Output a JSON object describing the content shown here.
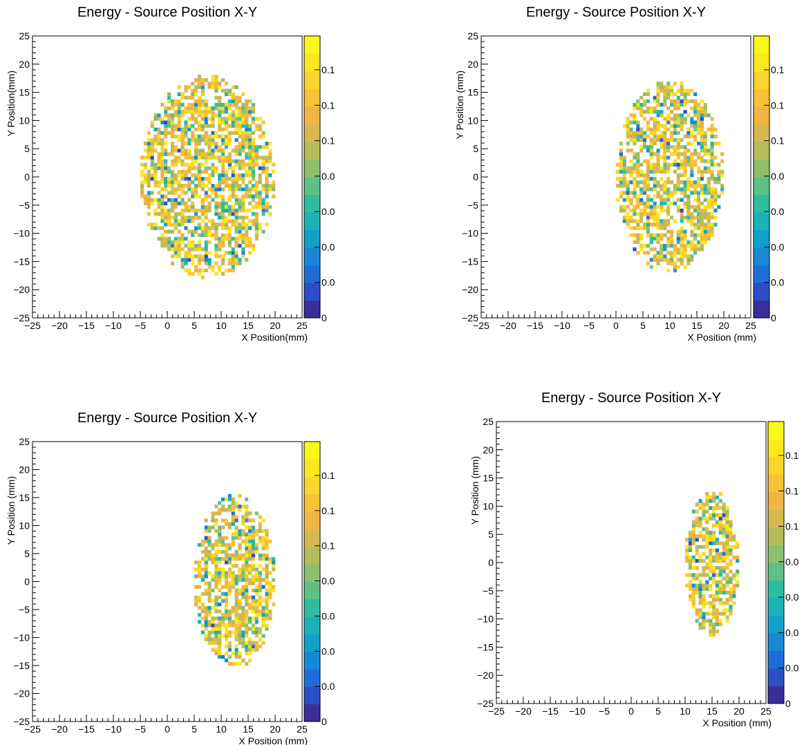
{
  "chart_data": [
    {
      "type": "heatmap",
      "title": "Energy - Source Position X-Y",
      "xlabel": "X Position(mm)",
      "ylabel": "Y Position(mm)",
      "xlim": [
        -25,
        25
      ],
      "ylim": [
        -25,
        25
      ],
      "xticks": [
        "−25",
        "−20",
        "−15",
        "−10",
        "−5",
        "0",
        "5",
        "10",
        "15",
        "20",
        "25"
      ],
      "yticks": [
        "25",
        "20",
        "15",
        "10",
        "5",
        "0",
        "−5",
        "−10",
        "−15",
        "−20",
        "−25"
      ],
      "colorbar_ticks": [
        "0.1",
        "0.1",
        "0.1",
        "0.0",
        "0.0",
        "0.0",
        "0.0",
        "0"
      ],
      "region": {
        "cx": 7.5,
        "cy": 0,
        "rx": 12.5,
        "ry": 18
      },
      "colorscale": [
        "#3a2d9b",
        "#2a4fc7",
        "#1f6ed8",
        "#1789d6",
        "#11a0cc",
        "#1bb2b8",
        "#2fbd9f",
        "#5fc086",
        "#8ec06c",
        "#b5bd5b",
        "#d6b851",
        "#f0b544",
        "#f7c237",
        "#f8d62a",
        "#fbe81f",
        "#fbf71a"
      ],
      "palette_weights": {
        "yellow": 0.52,
        "olive": 0.24,
        "green": 0.14,
        "blue": 0.08,
        "navy": 0.02
      },
      "seed": 11
    },
    {
      "type": "heatmap",
      "title": "Energy - Source Position X-Y",
      "xlabel": "X Position (mm)",
      "ylabel": "Y Position (mm)",
      "xlim": [
        -25,
        25
      ],
      "ylim": [
        -25,
        25
      ],
      "xticks": [
        "−25",
        "−20",
        "−15",
        "−10",
        "−5",
        "0",
        "5",
        "10",
        "15",
        "20",
        "25"
      ],
      "yticks": [
        "25",
        "20",
        "15",
        "10",
        "5",
        "0",
        "−5",
        "−10",
        "−15",
        "−20",
        "−25"
      ],
      "colorbar_ticks": [
        "0.1",
        "0.1",
        "0.1",
        "0.0",
        "0.0",
        "0.0",
        "0.0",
        "0"
      ],
      "region": {
        "cx": 10,
        "cy": 0,
        "rx": 10,
        "ry": 17
      },
      "colorscale": [
        "#3a2d9b",
        "#2a4fc7",
        "#1f6ed8",
        "#1789d6",
        "#11a0cc",
        "#1bb2b8",
        "#2fbd9f",
        "#5fc086",
        "#8ec06c",
        "#b5bd5b",
        "#d6b851",
        "#f0b544",
        "#f7c237",
        "#f8d62a",
        "#fbe81f",
        "#fbf71a"
      ],
      "palette_weights": {
        "yellow": 0.52,
        "olive": 0.24,
        "green": 0.14,
        "blue": 0.08,
        "navy": 0.02
      },
      "seed": 23
    },
    {
      "type": "heatmap",
      "title": "Energy - Source Position X-Y",
      "xlabel": "X Position (mm)",
      "ylabel": "Y Position (mm)",
      "xlim": [
        -25,
        25
      ],
      "ylim": [
        -25,
        25
      ],
      "xticks": [
        "−25",
        "−20",
        "−15",
        "−10",
        "−5",
        "0",
        "5",
        "10",
        "15",
        "20",
        "25"
      ],
      "yticks": [
        "25",
        "20",
        "15",
        "10",
        "5",
        "0",
        "−5",
        "−10",
        "−15",
        "−20",
        "−25"
      ],
      "colorbar_ticks": [
        "0.1",
        "0.1",
        "0.1",
        "0.0",
        "0.0",
        "0.0",
        "0.0",
        "0"
      ],
      "region": {
        "cx": 12.5,
        "cy": 0,
        "rx": 7.5,
        "ry": 15.5
      },
      "colorscale": [
        "#3a2d9b",
        "#2a4fc7",
        "#1f6ed8",
        "#1789d6",
        "#11a0cc",
        "#1bb2b8",
        "#2fbd9f",
        "#5fc086",
        "#8ec06c",
        "#b5bd5b",
        "#d6b851",
        "#f0b544",
        "#f7c237",
        "#f8d62a",
        "#fbe81f",
        "#fbf71a"
      ],
      "palette_weights": {
        "yellow": 0.52,
        "olive": 0.24,
        "green": 0.14,
        "blue": 0.08,
        "navy": 0.02
      },
      "seed": 37
    },
    {
      "type": "heatmap",
      "title": "Energy - Source Position X-Y",
      "xlabel": "X Position (mm)",
      "ylabel": "Y Position (mm)",
      "xlim": [
        -25,
        25
      ],
      "ylim": [
        -25,
        25
      ],
      "xticks": [
        "−25",
        "−20",
        "−15",
        "−10",
        "−5",
        "0",
        "5",
        "10",
        "15",
        "20",
        "25"
      ],
      "yticks": [
        "25",
        "20",
        "15",
        "10",
        "5",
        "0",
        "−5",
        "−10",
        "−15",
        "−20",
        "−25"
      ],
      "colorbar_ticks": [
        "0.1",
        "0.1",
        "0.1",
        "0.0",
        "0.0",
        "0.0",
        "0.0",
        "0"
      ],
      "region": {
        "cx": 15,
        "cy": 0,
        "rx": 5,
        "ry": 13
      },
      "colorscale": [
        "#3a2d9b",
        "#2a4fc7",
        "#1f6ed8",
        "#1789d6",
        "#11a0cc",
        "#1bb2b8",
        "#2fbd9f",
        "#5fc086",
        "#8ec06c",
        "#b5bd5b",
        "#d6b851",
        "#f0b544",
        "#f7c237",
        "#f8d62a",
        "#fbe81f",
        "#fbf71a"
      ],
      "palette_weights": {
        "yellow": 0.52,
        "olive": 0.24,
        "green": 0.14,
        "blue": 0.08,
        "navy": 0.02
      },
      "seed": 53
    }
  ]
}
